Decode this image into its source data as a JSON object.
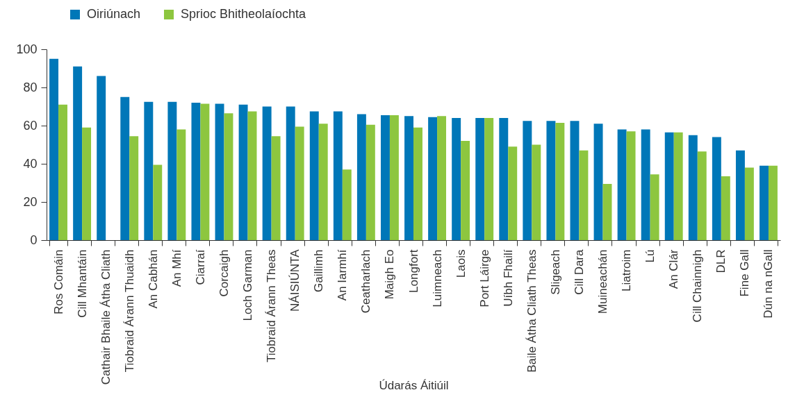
{
  "chart_data": {
    "type": "bar",
    "xlabel": "Údarás Áitiúil",
    "categories": [
      "Ros Comáin",
      "Cill Mhantáin",
      "Cathair Bhaile Átha Cliath",
      "Tiobraid Árann Thuaidh",
      "An Cabhán",
      "An Mhí",
      "Ciarraí",
      "Corcaigh",
      "Loch Garman",
      "Tiobraid Árann Theas",
      "NÁISIÚNTA",
      "Gaillimh",
      "An Iarmhí",
      "Ceatharlach",
      "Maigh Eo",
      "Longfort",
      "Luimneach",
      "Laois",
      "Port Láirge",
      "Uíbh Fhailí",
      "Baile Átha Cliath Theas",
      "Sligeach",
      "Cill Dara",
      "Muineachán",
      "Liatroim",
      "Lú",
      "An Clár",
      "Cill Chainnigh",
      "DLR",
      "Fine Gall",
      "Dún na nGall"
    ],
    "series": [
      {
        "name": "Oiriúnach",
        "color": "#0077b8",
        "values": [
          95,
          91,
          86,
          75,
          72.5,
          72.5,
          72,
          71.5,
          71,
          70,
          70,
          67.5,
          67.5,
          66,
          65.5,
          65,
          64.5,
          64,
          64,
          64,
          62.5,
          62.5,
          62.5,
          61,
          58,
          58,
          56.5,
          55,
          54,
          47,
          39
        ]
      },
      {
        "name": "Sprioc Bhitheolaíochta",
        "color": "#8dc63f",
        "values": [
          71,
          59,
          null,
          54.5,
          39.5,
          58,
          71.5,
          66.5,
          67.5,
          54.5,
          59.5,
          61,
          37,
          60.5,
          65.5,
          59,
          65,
          52,
          64,
          49,
          50,
          61.5,
          47,
          29.5,
          57,
          34.5,
          56.5,
          46.5,
          33.5,
          38,
          39
        ]
      }
    ],
    "ylim": [
      0,
      100
    ],
    "yticks": [
      0,
      20,
      40,
      60,
      80,
      100
    ],
    "grid": false,
    "legend": "top left"
  }
}
